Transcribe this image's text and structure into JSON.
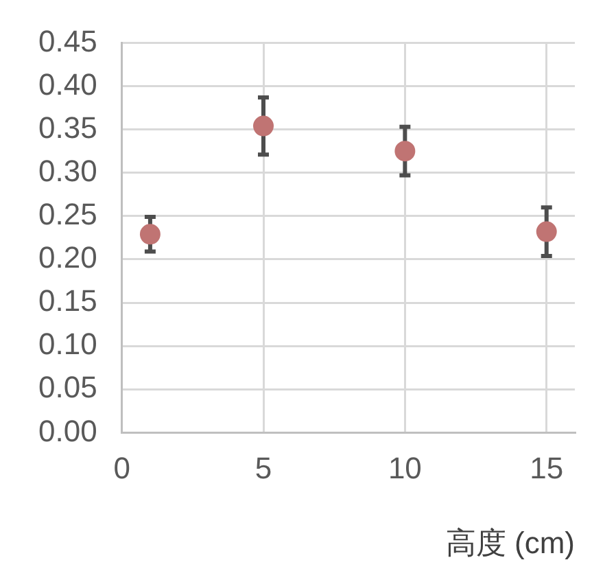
{
  "chart_data": {
    "type": "scatter",
    "xlabel": "高度 (cm)",
    "x": [
      1,
      5,
      10,
      15
    ],
    "series": [
      {
        "color": "#c07473",
        "values": [
          0.229,
          0.354,
          0.325,
          0.232
        ],
        "errors": [
          0.02,
          0.033,
          0.028,
          0.028
        ]
      }
    ],
    "xlim": [
      0,
      16
    ],
    "xticks": [
      0,
      5,
      10,
      15
    ],
    "ylim": [
      0,
      0.45
    ],
    "yticks": [
      {
        "value": 0,
        "label": "0.00"
      },
      0.05,
      {
        "value": 0.1,
        "label": "0.10"
      },
      0.15,
      {
        "value": 0.2,
        "label": "0.20"
      },
      0.25,
      {
        "value": 0.3,
        "label": "0.30"
      },
      0.35,
      {
        "value": 0.4,
        "label": "0.40"
      },
      0.45
    ],
    "grid": true,
    "marker": "circle",
    "legend": false
  }
}
